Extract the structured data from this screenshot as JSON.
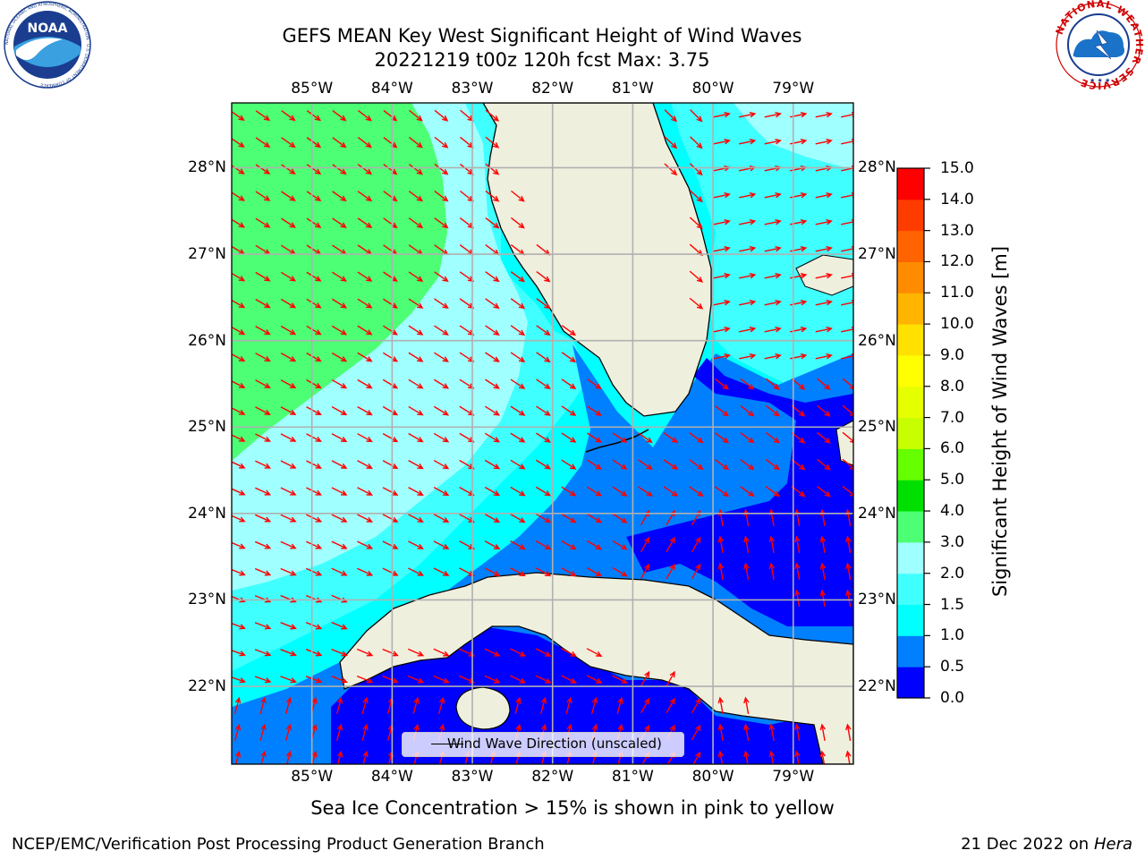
{
  "title": {
    "line1": "GEFS MEAN Key West Significant Height of Wind Waves",
    "line2": "20221219 t00z 120h fcst   Max: 3.75"
  },
  "logos": {
    "left": {
      "name": "noaa-logo",
      "text": "NOAA",
      "ring_text": "NATIONAL OCEANIC AND ATMOSPHERIC ADMINISTRATION · U.S. DEPARTMENT OF COMMERCE"
    },
    "right": {
      "name": "nws-logo",
      "ring_text": "NATIONAL WEATHER SERVICE"
    }
  },
  "map": {
    "lon_range": [
      -86.0,
      -78.25
    ],
    "lat_range": [
      21.1,
      28.75
    ],
    "lon_ticks": [
      {
        "value": -85,
        "label": "85°W"
      },
      {
        "value": -84,
        "label": "84°W"
      },
      {
        "value": -83,
        "label": "83°W"
      },
      {
        "value": -82,
        "label": "82°W"
      },
      {
        "value": -81,
        "label": "81°W"
      },
      {
        "value": -80,
        "label": "80°W"
      },
      {
        "value": -79,
        "label": "79°W"
      }
    ],
    "lat_ticks": [
      {
        "value": 22,
        "label": "22°N"
      },
      {
        "value": 23,
        "label": "23°N"
      },
      {
        "value": 24,
        "label": "24°N"
      },
      {
        "value": 25,
        "label": "25°N"
      },
      {
        "value": 26,
        "label": "26°N"
      },
      {
        "value": 27,
        "label": "27°N"
      },
      {
        "value": 28,
        "label": "28°N"
      }
    ],
    "grid": true,
    "land_color": "#efefde",
    "arrow_color": "#ff0000",
    "legend": {
      "label": "Wind Wave Direction (unscaled)",
      "position": "bottom-center"
    }
  },
  "colorbar": {
    "label": "Significant Height of Wind Waves [m]",
    "ticks": [
      "0.0",
      "0.5",
      "1.0",
      "1.5",
      "2.0",
      "3.0",
      "4.0",
      "5.0",
      "6.0",
      "7.0",
      "8.0",
      "9.0",
      "10.0",
      "11.0",
      "12.0",
      "13.0",
      "14.0",
      "15.0"
    ],
    "colors": [
      "#0000ff",
      "#0080ff",
      "#00ffff",
      "#40ffff",
      "#a0ffff",
      "#4cff74",
      "#00e000",
      "#66ff00",
      "#c8ff00",
      "#e6ff00",
      "#ffff00",
      "#ffe100",
      "#ffb400",
      "#ff8c00",
      "#ff6400",
      "#ff3c00",
      "#ff0000"
    ]
  },
  "footer": {
    "ice_note": "Sea Ice Concentration > 15% is shown in pink to yellow",
    "left": "NCEP/EMC/Verification Post Processing Product Generation Branch",
    "right_date": "21 Dec 2022 on",
    "right_host": "Hera"
  }
}
